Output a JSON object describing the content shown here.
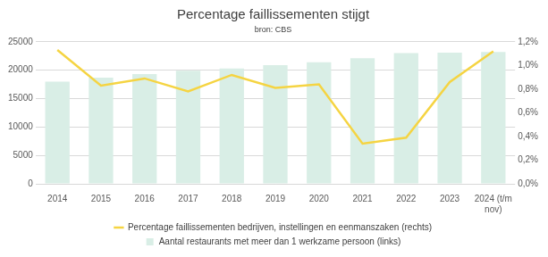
{
  "chart_data": {
    "type": "bar",
    "title": "Percentage faillissementen stijgt",
    "subtitle": "bron: CBS",
    "categories": [
      "2014",
      "2015",
      "2016",
      "2017",
      "2018",
      "2019",
      "2020",
      "2021",
      "2022",
      "2023",
      "2024 (t/m nov)"
    ],
    "series": [
      {
        "name": "Aantal restaurants met meer dan 1 werkzame persoon (links)",
        "type": "bar",
        "color": "#d9eee6",
        "values": [
          18000,
          18700,
          19300,
          19900,
          20300,
          20900,
          21400,
          22100,
          23000,
          23100,
          23200
        ]
      },
      {
        "name": "Percentage faillissementen bedrijven, instellingen en eenmanszaken (rechts)",
        "type": "line",
        "axis": "y2",
        "color": "#f5d442",
        "values": [
          1.13,
          0.83,
          0.89,
          0.78,
          0.92,
          0.81,
          0.84,
          0.34,
          0.39,
          0.86,
          1.12
        ]
      }
    ],
    "ylim": [
      0,
      25000
    ],
    "yticks": [
      0,
      5000,
      10000,
      15000,
      20000,
      25000
    ],
    "y2lim": [
      0,
      1.2
    ],
    "y2ticks": [
      {
        "value": 0,
        "label": "0,0%"
      },
      {
        "value": 0.2,
        "label": "0,2%"
      },
      {
        "value": 0.4,
        "label": "0,4%"
      },
      {
        "value": 0.6,
        "label": "0,6%"
      },
      {
        "value": 0.8,
        "label": "0,8%"
      },
      {
        "value": 1.0,
        "label": "1,0%"
      },
      {
        "value": 1.2,
        "label": "1,2%"
      }
    ],
    "grid": true,
    "legend": "bottom"
  }
}
